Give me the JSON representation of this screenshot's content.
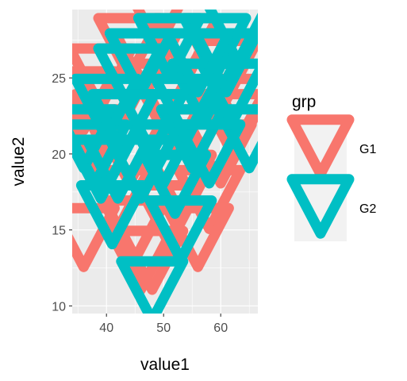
{
  "chart_data": {
    "type": "scatter",
    "shape": "triangle-down-open",
    "xlabel": "value1",
    "ylabel": "value2",
    "xlim": [
      34,
      66.5
    ],
    "ylim": [
      9.5,
      29.5
    ],
    "x_ticks": [
      40,
      50,
      60
    ],
    "y_ticks": [
      10,
      15,
      20,
      25
    ],
    "grid": true,
    "legend": {
      "title": "grp",
      "placement": "right",
      "entries": [
        {
          "label": "G1",
          "color": "#F8766D"
        },
        {
          "label": "G2",
          "color": "#00BFC4"
        }
      ]
    },
    "series": [
      {
        "name": "G1",
        "color": "#F8766D",
        "points": [
          {
            "x": 36,
            "y": 23.5
          },
          {
            "x": 38,
            "y": 21
          },
          {
            "x": 40,
            "y": 22
          },
          {
            "x": 36,
            "y": 14.5
          },
          {
            "x": 42,
            "y": 17
          },
          {
            "x": 45,
            "y": 15
          },
          {
            "x": 46,
            "y": 13
          },
          {
            "x": 48,
            "y": 13
          },
          {
            "x": 44,
            "y": 27
          },
          {
            "x": 47,
            "y": 26
          },
          {
            "x": 50,
            "y": 24
          },
          {
            "x": 52,
            "y": 22
          },
          {
            "x": 55,
            "y": 21
          },
          {
            "x": 58,
            "y": 17
          },
          {
            "x": 60,
            "y": 20
          },
          {
            "x": 62,
            "y": 22
          },
          {
            "x": 64,
            "y": 23
          },
          {
            "x": 57,
            "y": 24
          },
          {
            "x": 53,
            "y": 18
          },
          {
            "x": 49,
            "y": 29
          },
          {
            "x": 44,
            "y": 20
          },
          {
            "x": 51,
            "y": 16
          },
          {
            "x": 56,
            "y": 14.5
          },
          {
            "x": 61,
            "y": 25.5
          },
          {
            "x": 39,
            "y": 25
          },
          {
            "x": 54,
            "y": 27
          }
        ]
      },
      {
        "name": "G2",
        "color": "#00BFC4",
        "points": [
          {
            "x": 36,
            "y": 21
          },
          {
            "x": 38,
            "y": 20
          },
          {
            "x": 40,
            "y": 23
          },
          {
            "x": 42,
            "y": 19
          },
          {
            "x": 44,
            "y": 25
          },
          {
            "x": 46,
            "y": 26
          },
          {
            "x": 48,
            "y": 11
          },
          {
            "x": 50,
            "y": 20
          },
          {
            "x": 52,
            "y": 18
          },
          {
            "x": 53,
            "y": 15
          },
          {
            "x": 55,
            "y": 21
          },
          {
            "x": 57,
            "y": 24
          },
          {
            "x": 59,
            "y": 27
          },
          {
            "x": 61,
            "y": 26
          },
          {
            "x": 63,
            "y": 28
          },
          {
            "x": 65,
            "y": 21
          },
          {
            "x": 62,
            "y": 24
          },
          {
            "x": 48,
            "y": 22
          },
          {
            "x": 43,
            "y": 22
          },
          {
            "x": 51,
            "y": 27
          },
          {
            "x": 54,
            "y": 23
          },
          {
            "x": 46,
            "y": 19
          },
          {
            "x": 39,
            "y": 19
          },
          {
            "x": 58,
            "y": 20
          },
          {
            "x": 56,
            "y": 26
          },
          {
            "x": 41,
            "y": 16
          }
        ]
      }
    ]
  }
}
